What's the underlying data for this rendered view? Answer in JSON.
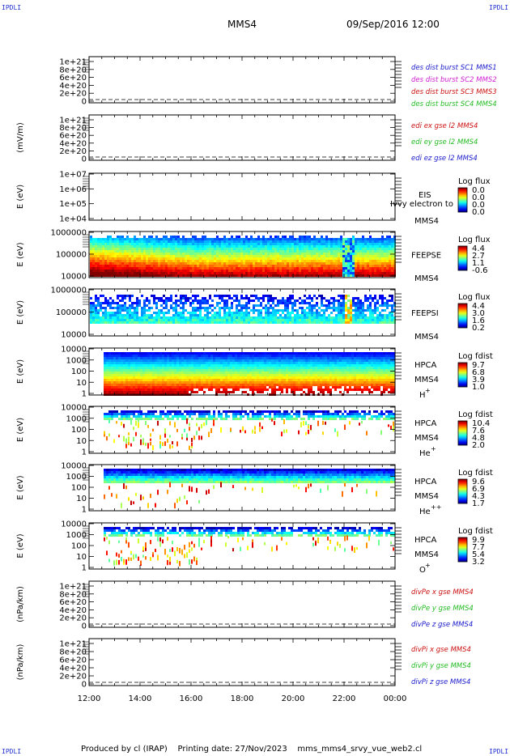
{
  "corner_label": "IPDLI",
  "header": {
    "spacecraft": "MMS4",
    "datetime": "09/Sep/2016 12:00"
  },
  "footer": {
    "produced_by": "Produced by cl (IRAP)",
    "printing_date": "Printing date: 27/Nov/2023",
    "script": "mms_mms4_srvy_vue_web2.cl"
  },
  "colors": {
    "c_mms1": "#1a1acc",
    "c_mms2": "#d020d0",
    "c_mms3": "#cc1111",
    "c_mms4": "#22bb22",
    "red": "#cc1111",
    "green": "#22bb22",
    "blue": "#1a1acc"
  },
  "chart_data": {
    "type": "heatmap",
    "x_ticks": [
      "12:00",
      "14:00",
      "16:00",
      "18:00",
      "20:00",
      "22:00",
      "00:00"
    ],
    "panels": [
      {
        "id": "des_dist",
        "type": "line",
        "ylabel": "",
        "yticks": [
          "1e+21",
          "8e+20",
          "6e+20",
          "4e+20",
          "2e+20",
          "0"
        ],
        "legend": [
          {
            "text": "des dist burst SC1 MMS1",
            "color": "c_mms1"
          },
          {
            "text": "des dist burst SC2 MMS2",
            "color": "c_mms2"
          },
          {
            "text": "des dist burst SC3 MMS3",
            "color": "c_mms3"
          },
          {
            "text": "des dist burst SC4 MMS4",
            "color": "c_mms4"
          }
        ]
      },
      {
        "id": "edi",
        "type": "line",
        "ylabel": "(mV/m)",
        "yticks": [
          "1e+21",
          "8e+20",
          "6e+20",
          "4e+20",
          "2e+20",
          "0"
        ],
        "legend": [
          {
            "text": "edi ex gse l2 MMS4",
            "color": "red"
          },
          {
            "text": "edi ey gse l2 MMS4",
            "color": "green"
          },
          {
            "text": "edi ez gse l2 MMS4",
            "color": "blue"
          }
        ]
      },
      {
        "id": "eis",
        "type": "heatmap",
        "ylabel": "E (eV)",
        "yticks": [
          "1e+07",
          "1e+06",
          "1e+05",
          "1e+04"
        ],
        "instrument": "EIS",
        "spacecraft": "MMS4",
        "overlay": "Ivvy electron to",
        "cbar_title": "Log flux",
        "cbar_ticks": [
          "0.0",
          "0.0",
          "0.0",
          "0.0"
        ]
      },
      {
        "id": "feepse",
        "type": "heatmap",
        "ylabel": "E (eV)",
        "yticks": [
          "1000000",
          "100000",
          "10000"
        ],
        "instrument": "FEEPSE",
        "spacecraft": "MMS4",
        "cbar_title": "Log flux",
        "cbar_ticks": [
          "4.4",
          "2.7",
          "1.1",
          "-0.6"
        ]
      },
      {
        "id": "feepsi",
        "type": "heatmap",
        "ylabel": "E (eV)",
        "yticks": [
          "1000000",
          "100000",
          "10000"
        ],
        "instrument": "FEEPSI",
        "spacecraft": "MMS4",
        "cbar_title": "Log flux",
        "cbar_ticks": [
          "4.4",
          "3.0",
          "1.6",
          "0.2"
        ]
      },
      {
        "id": "hpca_h",
        "type": "heatmap",
        "ylabel": "E (eV)",
        "yticks": [
          "10000",
          "1000",
          "100",
          "10",
          "1"
        ],
        "instrument": "HPCA",
        "spacecraft": "MMS4",
        "species": "H",
        "species_charge": "+",
        "cbar_title": "Log fdist",
        "cbar_ticks": [
          "9.7",
          "6.8",
          "3.9",
          "1.0"
        ]
      },
      {
        "id": "hpca_he1",
        "type": "heatmap",
        "ylabel": "E (eV)",
        "yticks": [
          "10000",
          "1000",
          "100",
          "10",
          "1"
        ],
        "instrument": "HPCA",
        "spacecraft": "MMS4",
        "species": "He",
        "species_charge": "+",
        "cbar_title": "Log fdist",
        "cbar_ticks": [
          "10.4",
          "7.6",
          "4.8",
          "2.0"
        ]
      },
      {
        "id": "hpca_he2",
        "type": "heatmap",
        "ylabel": "E (eV)",
        "yticks": [
          "10000",
          "1000",
          "100",
          "10",
          "1"
        ],
        "instrument": "HPCA",
        "spacecraft": "MMS4",
        "species": "He",
        "species_charge": "++",
        "cbar_title": "Log fdist",
        "cbar_ticks": [
          "9.6",
          "6.9",
          "4.3",
          "1.7"
        ]
      },
      {
        "id": "hpca_o",
        "type": "heatmap",
        "ylabel": "E (eV)",
        "yticks": [
          "10000",
          "1000",
          "100",
          "10",
          "1"
        ],
        "instrument": "HPCA",
        "spacecraft": "MMS4",
        "species": "O",
        "species_charge": "+",
        "cbar_title": "Log fdist",
        "cbar_ticks": [
          "9.9",
          "7.7",
          "5.4",
          "3.2"
        ]
      },
      {
        "id": "divpe",
        "type": "line",
        "ylabel": "(nPa/km)",
        "yticks": [
          "1e+21",
          "8e+20",
          "6e+20",
          "4e+20",
          "2e+20",
          "0"
        ],
        "legend": [
          {
            "text": "divPe x gse MMS4",
            "color": "red"
          },
          {
            "text": "divPe y gse MMS4",
            "color": "green"
          },
          {
            "text": "divPe z gse MMS4",
            "color": "blue"
          }
        ]
      },
      {
        "id": "divpi",
        "type": "line",
        "ylabel": "(nPa/km)",
        "yticks": [
          "1e+21",
          "8e+20",
          "6e+20",
          "4e+20",
          "2e+20",
          "0"
        ],
        "legend": [
          {
            "text": "divPi x gse MMS4",
            "color": "red"
          },
          {
            "text": "divPi y gse MMS4",
            "color": "green"
          },
          {
            "text": "divPi z gse MMS4",
            "color": "blue"
          }
        ]
      }
    ]
  }
}
